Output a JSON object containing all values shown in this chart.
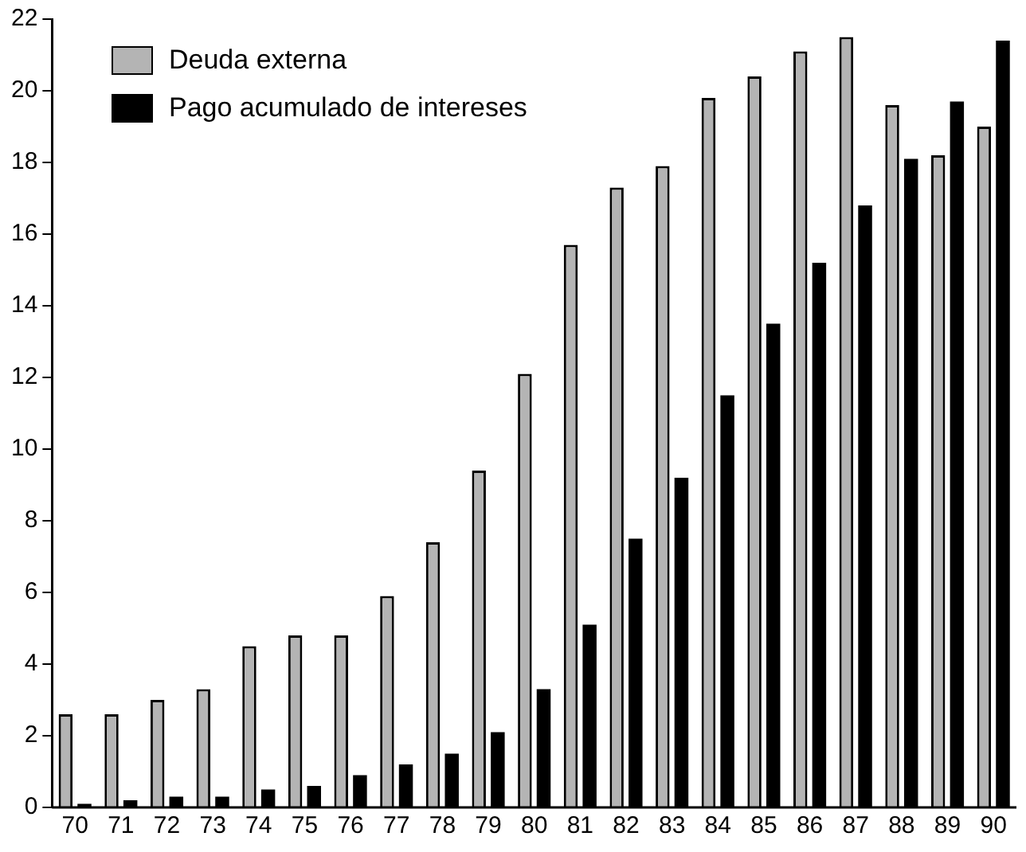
{
  "chart_data": {
    "type": "bar",
    "categories": [
      "70",
      "71",
      "72",
      "73",
      "74",
      "75",
      "76",
      "77",
      "78",
      "79",
      "80",
      "81",
      "82",
      "83",
      "84",
      "85",
      "86",
      "87",
      "88",
      "89",
      "90"
    ],
    "series": [
      {
        "name": "Deuda externa",
        "color": "#b4b4b4",
        "values": [
          2.6,
          2.6,
          3.0,
          3.3,
          4.5,
          4.8,
          4.8,
          5.9,
          7.4,
          9.4,
          12.1,
          15.7,
          17.3,
          17.9,
          19.8,
          20.4,
          21.1,
          21.5,
          19.6,
          18.2,
          19.0
        ]
      },
      {
        "name": "Pago acumulado de intereses",
        "color": "#000000",
        "values": [
          0.1,
          0.2,
          0.3,
          0.3,
          0.5,
          0.6,
          0.9,
          1.2,
          1.5,
          2.1,
          3.3,
          5.1,
          7.5,
          9.2,
          11.5,
          13.5,
          15.2,
          16.8,
          18.1,
          19.7,
          21.4
        ]
      }
    ],
    "ylim": [
      0,
      22
    ],
    "yticks": [
      0,
      2,
      4,
      6,
      8,
      10,
      12,
      14,
      16,
      18,
      20,
      22
    ],
    "legend": "top left"
  }
}
